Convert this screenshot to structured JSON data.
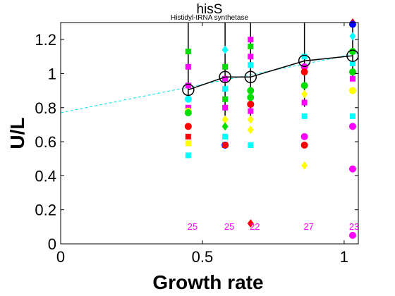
{
  "chart_data": {
    "type": "scatter",
    "title": "hisS",
    "subtitle": "Histidyl-tRNA synthetase",
    "xlabel": "Growth rate",
    "ylabel": "U/L",
    "xlim": [
      0,
      1.05
    ],
    "ylim": [
      0,
      1.3
    ],
    "x_ticks": [
      0,
      0.5,
      1
    ],
    "y_ticks": [
      0,
      0.2,
      0.4,
      0.6,
      0.8,
      1,
      1.2
    ],
    "x_tick_labels": [
      "0",
      "0.5",
      "1"
    ],
    "y_tick_labels": [
      "0",
      "0.2",
      "0.4",
      "0.6",
      "0.8",
      "1",
      "1.2"
    ],
    "grid": false,
    "mean_series": {
      "x": [
        0.45,
        0.58,
        0.67,
        0.86,
        1.03
      ],
      "y": [
        0.905,
        0.98,
        0.98,
        1.075,
        1.105
      ],
      "err_low": [
        0.05,
        0.28,
        0.26,
        0.27,
        0.14
      ],
      "err_high": [
        0.42,
        0.45,
        0.48,
        0.32,
        0.4
      ],
      "color": "#000000"
    },
    "fit_line": {
      "x": [
        0,
        1.05
      ],
      "y": [
        0.77,
        1.12
      ],
      "color": "#00e5ee"
    },
    "count_labels": [
      {
        "x": 0.465,
        "text": "25"
      },
      {
        "x": 0.595,
        "text": "25"
      },
      {
        "x": 0.685,
        "text": "22"
      },
      {
        "x": 0.875,
        "text": "27"
      },
      {
        "x": 1.035,
        "text": "23"
      }
    ],
    "count_label_y": 0.1,
    "count_label_color": "#ff00ff",
    "points": [
      {
        "x": 0.45,
        "y": 1.13,
        "shape": "square",
        "color": "#00dd00"
      },
      {
        "x": 0.45,
        "y": 1.04,
        "shape": "square",
        "color": "#ff00ff"
      },
      {
        "x": 0.45,
        "y": 0.93,
        "shape": "square",
        "color": "#ff00ff"
      },
      {
        "x": 0.45,
        "y": 0.85,
        "shape": "circle",
        "color": "#00ffff"
      },
      {
        "x": 0.45,
        "y": 0.8,
        "shape": "square",
        "color": "#ff00ff"
      },
      {
        "x": 0.45,
        "y": 0.78,
        "shape": "circle",
        "color": "#ffff00"
      },
      {
        "x": 0.45,
        "y": 0.77,
        "shape": "circle",
        "color": "#00dd00"
      },
      {
        "x": 0.45,
        "y": 0.69,
        "shape": "circle",
        "color": "#ff0000"
      },
      {
        "x": 0.45,
        "y": 0.63,
        "shape": "square",
        "color": "#ff0000"
      },
      {
        "x": 0.45,
        "y": 0.59,
        "shape": "square",
        "color": "#ffff00"
      },
      {
        "x": 0.45,
        "y": 0.52,
        "shape": "square",
        "color": "#00ffff"
      },
      {
        "x": 0.58,
        "y": 1.14,
        "shape": "diamond",
        "color": "#00ffff"
      },
      {
        "x": 0.58,
        "y": 1.04,
        "shape": "square",
        "color": "#00dd00"
      },
      {
        "x": 0.58,
        "y": 0.97,
        "shape": "square",
        "color": "#ff00ff"
      },
      {
        "x": 0.58,
        "y": 0.91,
        "shape": "square",
        "color": "#00ffff"
      },
      {
        "x": 0.58,
        "y": 0.85,
        "shape": "square",
        "color": "#00dd00"
      },
      {
        "x": 0.58,
        "y": 0.8,
        "shape": "square",
        "color": "#ff00ff"
      },
      {
        "x": 0.58,
        "y": 0.73,
        "shape": "diamond",
        "color": "#ffff00"
      },
      {
        "x": 0.58,
        "y": 0.69,
        "shape": "diamond",
        "color": "#00dd00"
      },
      {
        "x": 0.58,
        "y": 0.63,
        "shape": "square",
        "color": "#00ffff"
      },
      {
        "x": 0.58,
        "y": 0.58,
        "shape": "circle",
        "color": "#0000ff"
      },
      {
        "x": 0.58,
        "y": 0.58,
        "shape": "square",
        "color": "#ff0000"
      },
      {
        "x": 0.67,
        "y": 1.2,
        "shape": "square",
        "color": "#ff00ff"
      },
      {
        "x": 0.67,
        "y": 1.16,
        "shape": "square",
        "color": "#00dd00"
      },
      {
        "x": 0.67,
        "y": 1.1,
        "shape": "square",
        "color": "#ff00ff"
      },
      {
        "x": 0.67,
        "y": 1.05,
        "shape": "square",
        "color": "#00ffff"
      },
      {
        "x": 0.67,
        "y": 0.9,
        "shape": "circle",
        "color": "#00dd00"
      },
      {
        "x": 0.67,
        "y": 0.86,
        "shape": "circle",
        "color": "#00dd00"
      },
      {
        "x": 0.67,
        "y": 0.82,
        "shape": "circle",
        "color": "#0000ff"
      },
      {
        "x": 0.67,
        "y": 0.82,
        "shape": "circle",
        "color": "#ff0000"
      },
      {
        "x": 0.67,
        "y": 0.78,
        "shape": "square",
        "color": "#ff00ff"
      },
      {
        "x": 0.67,
        "y": 0.73,
        "shape": "diamond",
        "color": "#ffff00"
      },
      {
        "x": 0.67,
        "y": 0.67,
        "shape": "diamond",
        "color": "#ffff00"
      },
      {
        "x": 0.67,
        "y": 0.58,
        "shape": "square",
        "color": "#00ffff"
      },
      {
        "x": 0.67,
        "y": 0.12,
        "shape": "diamond",
        "color": "#ff0000"
      },
      {
        "x": 0.86,
        "y": 1.1,
        "shape": "square",
        "color": "#00ffff"
      },
      {
        "x": 0.86,
        "y": 1.04,
        "shape": "circle",
        "color": "#ff00ff"
      },
      {
        "x": 0.86,
        "y": 1.01,
        "shape": "circle",
        "color": "#ff0000"
      },
      {
        "x": 0.86,
        "y": 0.93,
        "shape": "circle",
        "color": "#00dd00"
      },
      {
        "x": 0.86,
        "y": 0.88,
        "shape": "diamond",
        "color": "#ffff00"
      },
      {
        "x": 0.86,
        "y": 0.83,
        "shape": "square",
        "color": "#ff00ff"
      },
      {
        "x": 0.86,
        "y": 0.75,
        "shape": "square",
        "color": "#00ffff"
      },
      {
        "x": 0.86,
        "y": 0.63,
        "shape": "circle",
        "color": "#ff00ff"
      },
      {
        "x": 0.86,
        "y": 0.58,
        "shape": "circle",
        "color": "#ff0000"
      },
      {
        "x": 0.86,
        "y": 0.46,
        "shape": "diamond",
        "color": "#ffff00"
      },
      {
        "x": 1.03,
        "y": 1.3,
        "shape": "diamond",
        "color": "#ff0000"
      },
      {
        "x": 1.03,
        "y": 1.29,
        "shape": "circle",
        "color": "#0000ff"
      },
      {
        "x": 1.03,
        "y": 1.22,
        "shape": "diamond",
        "color": "#00ffff"
      },
      {
        "x": 1.03,
        "y": 1.13,
        "shape": "circle",
        "color": "#00dd00"
      },
      {
        "x": 1.03,
        "y": 1.06,
        "shape": "square",
        "color": "#00ffff"
      },
      {
        "x": 1.03,
        "y": 1.01,
        "shape": "circle",
        "color": "#00dd00"
      },
      {
        "x": 1.03,
        "y": 0.97,
        "shape": "square",
        "color": "#ff00ff"
      },
      {
        "x": 1.03,
        "y": 0.9,
        "shape": "circle",
        "color": "#ffff00"
      },
      {
        "x": 1.03,
        "y": 0.75,
        "shape": "square",
        "color": "#00ffff"
      },
      {
        "x": 1.03,
        "y": 0.69,
        "shape": "circle",
        "color": "#ff00ff"
      },
      {
        "x": 1.03,
        "y": 0.44,
        "shape": "circle",
        "color": "#ff00ff"
      },
      {
        "x": 1.03,
        "y": 0.05,
        "shape": "circle",
        "color": "#ff00ff"
      }
    ]
  }
}
